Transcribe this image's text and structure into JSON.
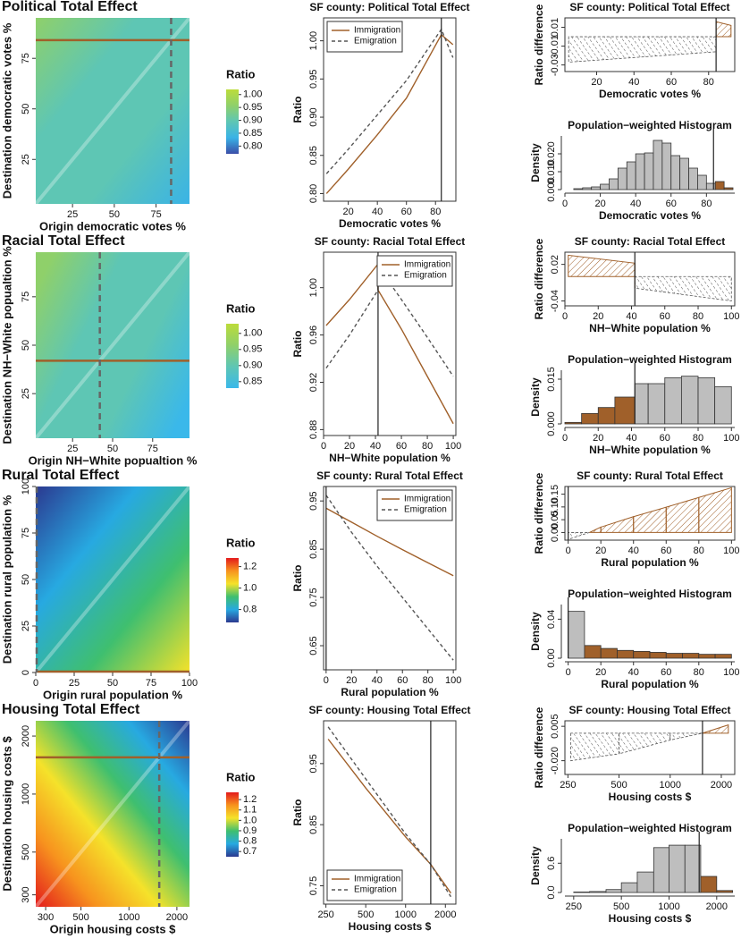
{
  "chart_data": [
    {
      "type": "heatmap",
      "title": "Political Total Effect",
      "xlabel": "Origin democratic votes %",
      "ylabel": "Destination democratic votes %",
      "xlim": [
        3,
        95
      ],
      "ylim": [
        3,
        95
      ],
      "xticks": [
        25,
        50,
        75
      ],
      "yticks": [
        25,
        50,
        75
      ],
      "sf_value": 84,
      "colorbar_label": "Ratio",
      "colorbar_lim": [
        0.77,
        1.02
      ],
      "colorbar_ticks": [
        {
          "value": 0.8,
          "label": "0.80"
        },
        0.85,
        {
          "value": 0.9,
          "label": "0.90"
        },
        0.95,
        {
          "value": 1,
          "label": "1.00"
        }
      ],
      "colorscale": [
        "#3b4ea8",
        "#3ab3e6",
        "#5ec6b4",
        "#8fd06a",
        "#bcdc3a"
      ],
      "hline_color": "#a0602a",
      "vline_color": "#666666"
    },
    {
      "type": "line",
      "title": "SF county: Political Total Effect",
      "xlabel": "Democratic votes %",
      "ylabel": "Ratio",
      "xlim": [
        3,
        94
      ],
      "ylim": [
        0.79,
        1.03
      ],
      "xticks": [
        20,
        40,
        60,
        80
      ],
      "yticks": [
        {
          "value": 0.8,
          "label": "0.80"
        },
        0.85,
        {
          "value": 0.9,
          "label": "0.90"
        },
        0.95,
        {
          "value": 1,
          "label": "1.00"
        }
      ],
      "x": [
        5,
        20,
        40,
        60,
        84,
        92
      ],
      "sf_value": 84,
      "legend": "upper left",
      "series": [
        {
          "name": "Immigration",
          "color": "#a0602a",
          "linestyle": "solid",
          "values": [
            0.8,
            0.832,
            0.877,
            0.925,
            1.008,
            0.995
          ]
        },
        {
          "name": "Emigration",
          "color": "#555555",
          "linestyle": "dashed",
          "values": [
            0.826,
            0.858,
            0.903,
            0.948,
            1.015,
            0.978
          ]
        }
      ]
    },
    {
      "type": "area",
      "title": "SF county: Political Total Effect",
      "xlabel": "Democratic votes %",
      "ylabel": "Ratio difference",
      "xlim": [
        3,
        94
      ],
      "ylim": [
        -0.037,
        0.02
      ],
      "xticks": [
        20,
        40,
        60,
        80
      ],
      "yticks": [
        -0.03,
        -0.01,
        0.01
      ],
      "x": [
        5,
        84,
        84,
        92
      ],
      "values": [
        -0.027,
        -0.016,
        0.016,
        0.012
      ],
      "sf_value": 84,
      "positive_color": "#a0602a",
      "negative_color": "#555555"
    },
    {
      "type": "histogram",
      "title": "Population−weighted Histogram",
      "xlabel": "Democratic votes %",
      "ylabel": "Density",
      "xlim": [
        0,
        96
      ],
      "ylim": [
        0,
        0.03
      ],
      "xticks": [
        0,
        20,
        40,
        60,
        80
      ],
      "yticks": [
        {
          "value": 0,
          "label": "0.000"
        },
        {
          "value": 0.01,
          "label": "0.010"
        },
        {
          "value": 0.02,
          "label": "0.020"
        }
      ],
      "bins": [
        5,
        10,
        15,
        20,
        25,
        30,
        35,
        40,
        45,
        50,
        55,
        60,
        65,
        70,
        75,
        80,
        85,
        90,
        95
      ],
      "values": [
        0.0005,
        0.001,
        0.0015,
        0.003,
        0.006,
        0.012,
        0.0155,
        0.02,
        0.0205,
        0.0275,
        0.026,
        0.019,
        0.0175,
        0.012,
        0.008,
        0.0035,
        0.0045,
        0.001
      ],
      "colors": [
        "#bebebe",
        "#bebebe",
        "#bebebe",
        "#bebebe",
        "#bebebe",
        "#bebebe",
        "#bebebe",
        "#bebebe",
        "#bebebe",
        "#bebebe",
        "#bebebe",
        "#bebebe",
        "#bebebe",
        "#bebebe",
        "#bebebe",
        "#bebebe",
        "#a0602a",
        "#a0602a"
      ],
      "sf_value": 84
    },
    {
      "type": "heatmap",
      "title": "Racial Total Effect",
      "xlabel": "Origin NH−White popualtion %",
      "ylabel": "Destination NH−White popualtion %",
      "xlim": [
        2,
        98
      ],
      "ylim": [
        2,
        98
      ],
      "xticks": [
        25,
        50,
        75
      ],
      "yticks": [
        25,
        50,
        75
      ],
      "sf_value": 42,
      "colorbar_label": "Ratio",
      "colorbar_lim": [
        0.83,
        1.03
      ],
      "colorbar_ticks": [
        0.85,
        {
          "value": 0.9,
          "label": "0.90"
        },
        0.95,
        {
          "value": 1,
          "label": "1.00"
        }
      ],
      "colorscale": [
        "#3ab8ea",
        "#5ec6b4",
        "#8fd06a",
        "#bcdc3a"
      ],
      "hline_color": "#a0602a",
      "vline_color": "#666666"
    },
    {
      "type": "line",
      "title": "SF county: Racial Total Effect",
      "xlabel": "NH−White population %",
      "ylabel": "Ratio",
      "xlim": [
        0,
        102
      ],
      "ylim": [
        0.875,
        1.03
      ],
      "xticks": [
        0,
        20,
        40,
        60,
        80,
        100
      ],
      "yticks": [
        0.88,
        0.92,
        0.96,
        {
          "value": 1,
          "label": "1.00"
        }
      ],
      "x": [
        2,
        20,
        42,
        42,
        60,
        80,
        100
      ],
      "sf_value": 42,
      "legend": "upper right",
      "series": [
        {
          "name": "Immigration",
          "color": "#a0602a",
          "linestyle": "solid",
          "values": [
            0.968,
            0.99,
            1.02,
            0.998,
            0.965,
            0.925,
            0.885
          ]
        },
        {
          "name": "Emigration",
          "color": "#555555",
          "linestyle": "dashed",
          "values": [
            0.932,
            0.96,
            0.998,
            1.018,
            0.99,
            0.958,
            0.925
          ]
        }
      ]
    },
    {
      "type": "area",
      "title": "SF county: Racial Total Effect",
      "xlabel": "NH−White population %",
      "ylabel": "Ratio difference",
      "xlim": [
        0,
        102
      ],
      "ylim": [
        -0.048,
        0.04
      ],
      "xticks": [
        0,
        20,
        40,
        60,
        80,
        100
      ],
      "yticks": [
        0.02,
        -0.04
      ],
      "x": [
        2,
        42,
        42,
        100
      ],
      "values": [
        0.035,
        0.022,
        -0.019,
        -0.04
      ],
      "sf_value": 42,
      "positive_color": "#a0602a",
      "negative_color": "#555555"
    },
    {
      "type": "histogram",
      "title": "Population−weighted Histogram",
      "xlabel": "NH−White population %",
      "ylabel": "Density",
      "xlim": [
        0,
        102
      ],
      "ylim": [
        0,
        0.018
      ],
      "xticks": [
        0,
        20,
        40,
        60,
        80,
        100
      ],
      "yticks": [
        {
          "value": 0,
          "label": "0.000"
        },
        0.015
      ],
      "bins": [
        0,
        10,
        20,
        30,
        42,
        50,
        60,
        70,
        80,
        90,
        100
      ],
      "values": [
        0.0005,
        0.0035,
        0.0055,
        0.009,
        0.0135,
        0.0135,
        0.0155,
        0.016,
        0.0155,
        0.0125
      ],
      "colors": [
        "#a0602a",
        "#a0602a",
        "#a0602a",
        "#a0602a",
        "#bebebe",
        "#bebebe",
        "#bebebe",
        "#bebebe",
        "#bebebe",
        "#bebebe"
      ],
      "sf_value": 42
    },
    {
      "type": "heatmap",
      "title": "Rural Total Effect",
      "xlabel": "Origin rural population %",
      "ylabel": "Destination rural population %",
      "xlim": [
        0,
        100
      ],
      "ylim": [
        0,
        100
      ],
      "xticks": [
        0,
        25,
        50,
        75,
        100
      ],
      "yticks": [
        0,
        25,
        50,
        75,
        100
      ],
      "sf_value": 0,
      "colorbar_label": "Ratio",
      "colorbar_lim": [
        0.68,
        1.28
      ],
      "colorbar_ticks": [
        0.8,
        {
          "value": 1,
          "label": "1.0"
        },
        1.2
      ],
      "colorscale": [
        "#2b3990",
        "#27a9e1",
        "#3fbf6f",
        "#f5e22a",
        "#f7931e",
        "#e31a1c"
      ],
      "hline_color": "#a0602a",
      "vline_color": "#666666"
    },
    {
      "type": "line",
      "title": "SF county: Rural Total Effect",
      "xlabel": "Rural population %",
      "ylabel": "Ratio",
      "xlim": [
        -2,
        102
      ],
      "ylim": [
        0.6,
        0.98
      ],
      "xticks": [
        0,
        20,
        40,
        60,
        80,
        100
      ],
      "yticks": [
        0.65,
        0.75,
        0.85,
        0.95
      ],
      "x": [
        0,
        20,
        40,
        60,
        80,
        100
      ],
      "sf_value": 0,
      "legend": "upper right",
      "series": [
        {
          "name": "Immigration",
          "color": "#a0602a",
          "linestyle": "solid",
          "values": [
            0.935,
            0.906,
            0.877,
            0.849,
            0.822,
            0.795
          ]
        },
        {
          "name": "Emigration",
          "color": "#555555",
          "linestyle": "dashed",
          "values": [
            0.962,
            0.885,
            0.815,
            0.75,
            0.685,
            0.62
          ]
        }
      ]
    },
    {
      "type": "area",
      "title": "SF county: Rural Total Effect",
      "xlabel": "Rural population %",
      "ylabel": "Ratio difference",
      "xlim": [
        -2,
        102
      ],
      "ylim": [
        -0.03,
        0.18
      ],
      "xticks": [
        0,
        20,
        40,
        60,
        80,
        100
      ],
      "yticks": [
        {
          "value": 0,
          "label": "0.00"
        },
        0.05,
        {
          "value": 0.1,
          "label": "0.10"
        },
        0.15
      ],
      "x": [
        0,
        13,
        20,
        40,
        60,
        80,
        100
      ],
      "values": [
        -0.027,
        0,
        0.021,
        0.062,
        0.099,
        0.137,
        0.175
      ],
      "sf_value": 0,
      "positive_color": "#a0602a",
      "negative_color": "#555555"
    },
    {
      "type": "histogram",
      "title": "Population−weighted Histogram",
      "xlabel": "Rural population %",
      "ylabel": "Density",
      "xlim": [
        -2,
        102
      ],
      "ylim": [
        0,
        0.055
      ],
      "xticks": [
        0,
        20,
        40,
        60,
        80,
        100
      ],
      "yticks": [
        {
          "value": 0,
          "label": "0.00"
        },
        0.04
      ],
      "bins": [
        0,
        10,
        20,
        30,
        40,
        50,
        60,
        70,
        80,
        90,
        100
      ],
      "values": [
        0.048,
        0.013,
        0.01,
        0.008,
        0.007,
        0.006,
        0.005,
        0.005,
        0.004,
        0.004
      ],
      "colors": [
        "#bebebe",
        "#a0602a",
        "#a0602a",
        "#a0602a",
        "#a0602a",
        "#a0602a",
        "#a0602a",
        "#a0602a",
        "#a0602a",
        "#a0602a"
      ],
      "sf_value": 0
    },
    {
      "type": "heatmap",
      "title": "Housing Total Effect",
      "xlabel": "Origin housing costs $",
      "ylabel": "Destination housing costs $",
      "xlim": [
        260,
        2400
      ],
      "ylim": [
        260,
        2400
      ],
      "xlog": true,
      "ylog": true,
      "xticks": [
        300,
        500,
        1000,
        2000
      ],
      "yticks": [
        300,
        500,
        1000,
        2000
      ],
      "sf_value": 1550,
      "colorbar_label": "Ratio",
      "colorbar_lim": [
        0.65,
        1.27
      ],
      "colorbar_ticks": [
        0.7,
        0.8,
        0.9,
        {
          "value": 1,
          "label": "1.0"
        },
        1.1,
        1.2
      ],
      "colorscale": [
        "#2b3990",
        "#27a9e1",
        "#3fbf6f",
        "#f5e22a",
        "#f7931e",
        "#e31a1c"
      ],
      "hline_color": "#a0602a",
      "vline_color": "#666666"
    },
    {
      "type": "line",
      "title": "SF county: Housing Total Effect",
      "xlabel": "Housing costs $",
      "ylabel": "Ratio",
      "xlim": [
        240,
        2400
      ],
      "ylim": [
        0.72,
        1.02
      ],
      "xlog": true,
      "xticks": [
        250,
        500,
        1000,
        2000
      ],
      "yticks": [
        0.75,
        0.85,
        0.95
      ],
      "x": [
        260,
        500,
        1000,
        1550,
        2200
      ],
      "sf_value": 1550,
      "legend": "lower left",
      "series": [
        {
          "name": "Immigration",
          "color": "#a0602a",
          "linestyle": "solid",
          "values": [
            0.99,
            0.91,
            0.83,
            0.785,
            0.738
          ]
        },
        {
          "name": "Emigration",
          "color": "#555555",
          "linestyle": "dashed",
          "values": [
            1.01,
            0.925,
            0.835,
            0.785,
            0.732
          ]
        }
      ]
    },
    {
      "type": "area",
      "title": "SF county: Housing Total Effect",
      "xlabel": "Housing costs $",
      "ylabel": "Ratio difference",
      "xlim": [
        240,
        2400
      ],
      "ylim": [
        -0.03,
        0.009
      ],
      "xlog": true,
      "xticks": [
        250,
        500,
        1000,
        2000
      ],
      "yticks": [
        0.005,
        {
          "value": -0.02,
          "label": "-0.020"
        }
      ],
      "x": [
        260,
        500,
        1000,
        1550,
        2200
      ],
      "values": [
        -0.02,
        -0.015,
        -0.005,
        0,
        0.006
      ],
      "sf_value": 1550,
      "positive_color": "#a0602a",
      "negative_color": "#555555"
    },
    {
      "type": "histogram",
      "title": "Population−weighted Histogram",
      "xlabel": "Housing costs $",
      "ylabel": "Density",
      "xlim": [
        220,
        2600
      ],
      "ylim": [
        0,
        1.1
      ],
      "xlog": true,
      "xticks": [
        250,
        500,
        1000,
        2000
      ],
      "yticks": [
        {
          "value": 0,
          "label": "0.0"
        },
        0.6
      ],
      "bins": [
        250,
        315,
        400,
        500,
        630,
        800,
        1000,
        1260,
        1585,
        2000,
        2520
      ],
      "values": [
        0.01,
        0.02,
        0.06,
        0.2,
        0.42,
        0.92,
        0.97,
        0.97,
        0.33,
        0.04
      ],
      "colors": [
        "#bebebe",
        "#bebebe",
        "#bebebe",
        "#bebebe",
        "#bebebe",
        "#bebebe",
        "#bebebe",
        "#bebebe",
        "#a0602a",
        "#a0602a"
      ],
      "sf_value": 1550
    }
  ]
}
